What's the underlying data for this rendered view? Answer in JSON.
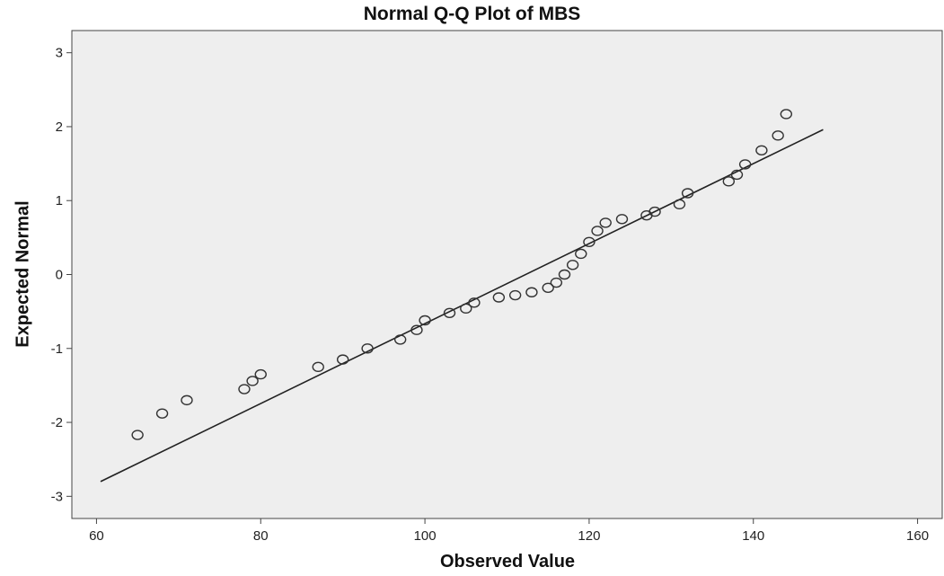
{
  "chart_data": {
    "type": "scatter",
    "title": "Normal Q-Q Plot of MBS",
    "xlabel": "Observed Value",
    "ylabel": "Expected Normal",
    "xlim": [
      57,
      163
    ],
    "ylim": [
      -3.3,
      3.3
    ],
    "x_ticks": [
      60,
      80,
      100,
      120,
      140,
      160
    ],
    "y_ticks": [
      3,
      2,
      1,
      0,
      -1,
      -2,
      -3
    ],
    "grid": false,
    "background_color": "#eeeeee",
    "marker": "open-circle",
    "marker_color": "#333333",
    "line_color": "#222222",
    "points": [
      {
        "x": 65,
        "y": -2.17
      },
      {
        "x": 68,
        "y": -1.88
      },
      {
        "x": 71,
        "y": -1.7
      },
      {
        "x": 78,
        "y": -1.55
      },
      {
        "x": 79,
        "y": -1.44
      },
      {
        "x": 80,
        "y": -1.35
      },
      {
        "x": 87,
        "y": -1.25
      },
      {
        "x": 90,
        "y": -1.15
      },
      {
        "x": 93,
        "y": -1.0
      },
      {
        "x": 97,
        "y": -0.88
      },
      {
        "x": 99,
        "y": -0.75
      },
      {
        "x": 100,
        "y": -0.62
      },
      {
        "x": 103,
        "y": -0.52
      },
      {
        "x": 105,
        "y": -0.46
      },
      {
        "x": 106,
        "y": -0.38
      },
      {
        "x": 109,
        "y": -0.31
      },
      {
        "x": 111,
        "y": -0.28
      },
      {
        "x": 113,
        "y": -0.24
      },
      {
        "x": 115,
        "y": -0.18
      },
      {
        "x": 116,
        "y": -0.11
      },
      {
        "x": 117,
        "y": 0.0
      },
      {
        "x": 118,
        "y": 0.13
      },
      {
        "x": 119,
        "y": 0.28
      },
      {
        "x": 120,
        "y": 0.44
      },
      {
        "x": 121,
        "y": 0.59
      },
      {
        "x": 122,
        "y": 0.7
      },
      {
        "x": 124,
        "y": 0.75
      },
      {
        "x": 127,
        "y": 0.8
      },
      {
        "x": 128,
        "y": 0.85
      },
      {
        "x": 131,
        "y": 0.95
      },
      {
        "x": 132,
        "y": 1.1
      },
      {
        "x": 137,
        "y": 1.26
      },
      {
        "x": 138,
        "y": 1.35
      },
      {
        "x": 139,
        "y": 1.49
      },
      {
        "x": 141,
        "y": 1.68
      },
      {
        "x": 143,
        "y": 1.88
      },
      {
        "x": 144,
        "y": 2.17
      }
    ],
    "reference_line": {
      "x": [
        60.5,
        148.5
      ],
      "y": [
        -2.8,
        1.96
      ]
    }
  }
}
